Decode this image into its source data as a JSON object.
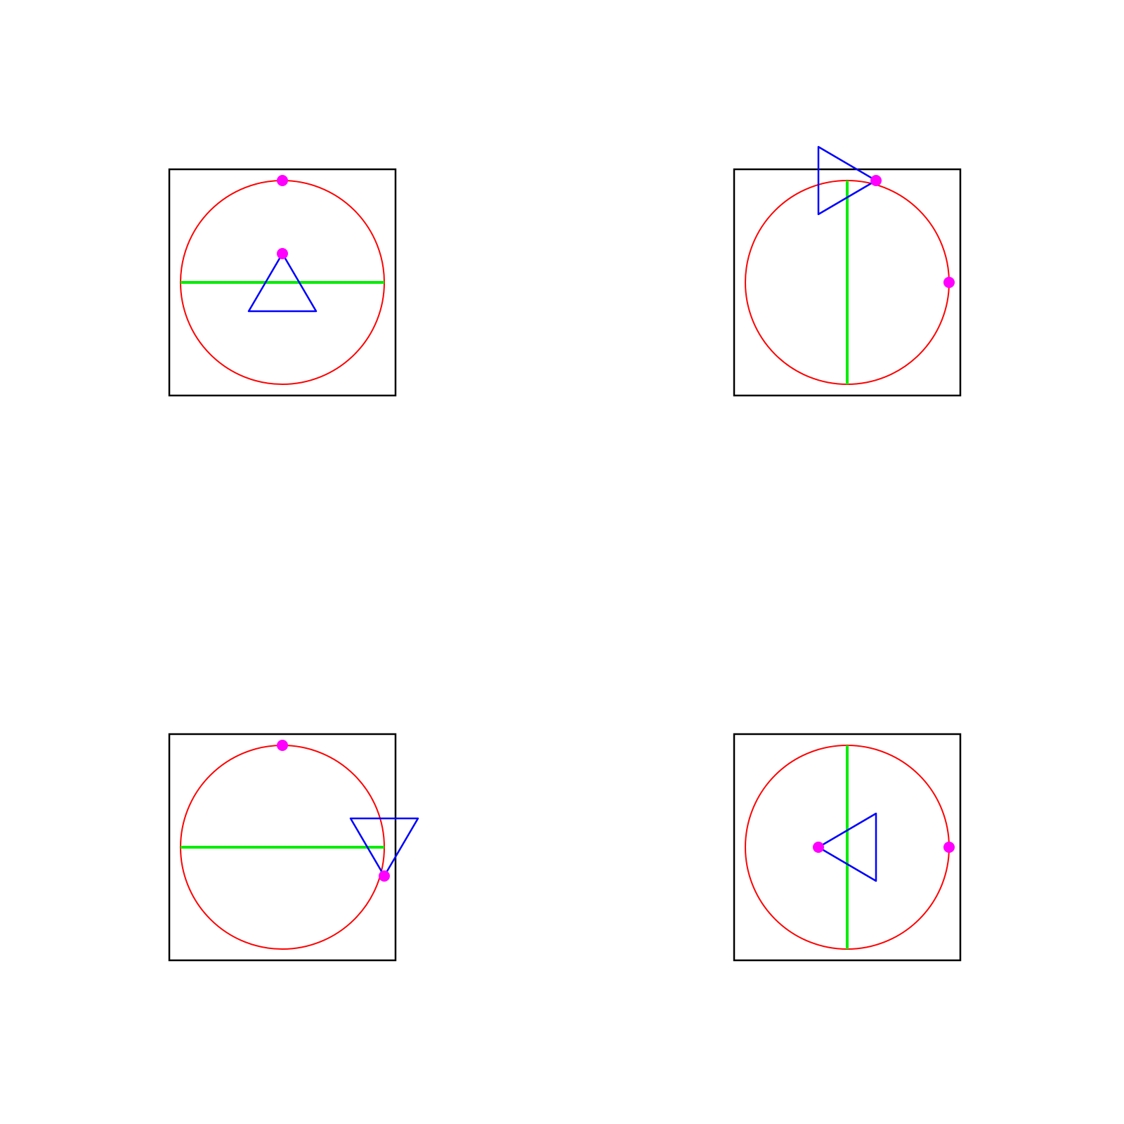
{
  "colors": {
    "frame": "#000000",
    "circle": "#ff0000",
    "diameter": "#00ee00",
    "triangle": "#0000ff",
    "marker": "#ff00ff",
    "background": "#ffffff"
  },
  "panels": [
    {
      "id": "top-left",
      "diameter_orientation": "horizontal",
      "triangle": "pointing-up",
      "markers": [
        "circle-top",
        "triangle-apex"
      ]
    },
    {
      "id": "top-right",
      "diameter_orientation": "vertical",
      "triangle": "pointing-right",
      "markers": [
        "circle-right",
        "triangle-apex"
      ]
    },
    {
      "id": "bottom-left",
      "diameter_orientation": "horizontal",
      "triangle": "pointing-down",
      "markers": [
        "circle-top",
        "triangle-apex"
      ]
    },
    {
      "id": "bottom-right",
      "diameter_orientation": "vertical",
      "triangle": "pointing-left",
      "markers": [
        "circle-right",
        "triangle-apex"
      ]
    }
  ]
}
